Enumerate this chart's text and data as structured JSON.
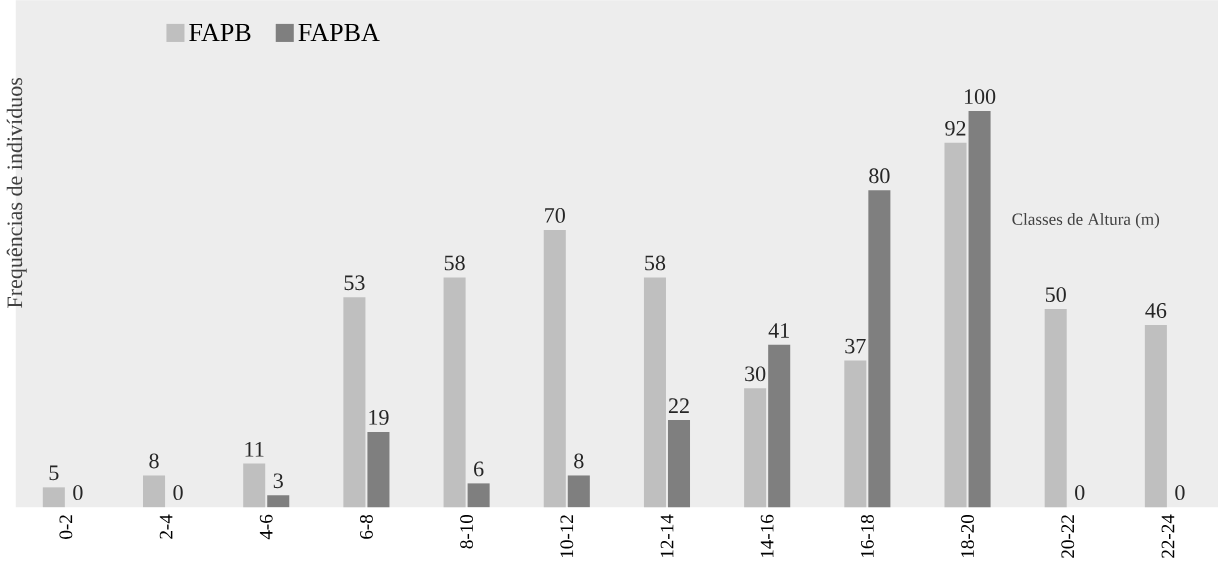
{
  "chart_data": {
    "type": "bar",
    "ylabel": "Frequências de indivíduos",
    "annotations": [
      "Classes de Altura (m)"
    ],
    "categories": [
      "0-2",
      "2-4",
      "4-6",
      "6-8",
      "8-10",
      "10-12",
      "12-14",
      "14-16",
      "16-18",
      "18-20",
      "20-22",
      "22-24"
    ],
    "series": [
      {
        "name": "FAPB",
        "color": "#bfbfbf",
        "values": [
          5,
          8,
          11,
          53,
          58,
          70,
          58,
          30,
          37,
          92,
          50,
          46
        ]
      },
      {
        "name": "FAPBA",
        "color": "#7f7f7f",
        "values": [
          0,
          0,
          3,
          19,
          6,
          8,
          22,
          41,
          80,
          100,
          0,
          0
        ]
      }
    ],
    "ylim": [
      0,
      128
    ],
    "data_labels": true,
    "legend": "top left"
  }
}
